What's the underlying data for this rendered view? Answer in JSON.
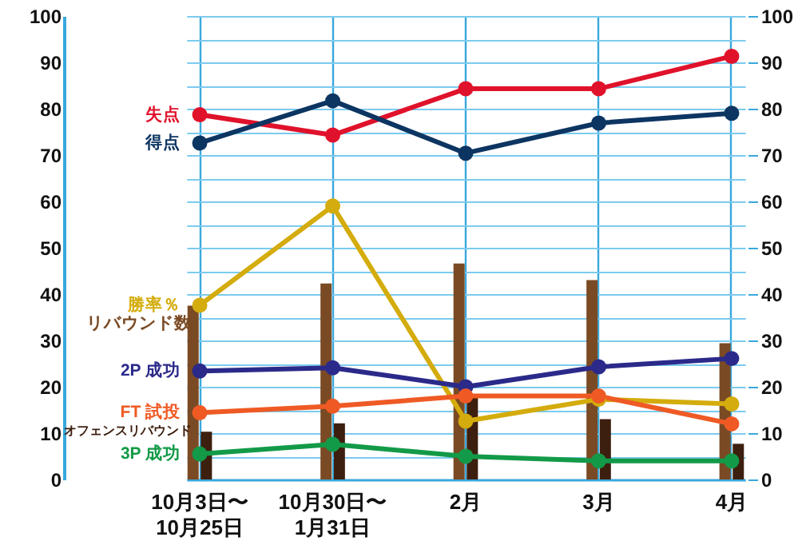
{
  "chart_data": {
    "type": "line",
    "categories": [
      "10月3日〜10月25日",
      "10月30日〜1月31日",
      "2月",
      "3月",
      "4月"
    ],
    "series": [
      {
        "name": "失点",
        "color": "#e0122b",
        "values": [
          78.7,
          74.3,
          84.3,
          84.3,
          91.3
        ]
      },
      {
        "name": "得点",
        "color": "#0d3562",
        "values": [
          72.6,
          81.7,
          70.4,
          76.9,
          79.0
        ]
      },
      {
        "name": "勝率％",
        "color": "#d4ac0d",
        "values": [
          37.6,
          59.0,
          12.6,
          17.3,
          16.3
        ]
      },
      {
        "name": "リバウンド数",
        "type": "bar",
        "color": "#7a4a24",
        "values": [
          37.5,
          42.3,
          46.6,
          43.0,
          29.4
        ]
      },
      {
        "name": "2P 成功",
        "color": "#2b2a8a",
        "values": [
          23.4,
          24.1,
          20.0,
          24.3,
          26.1
        ]
      },
      {
        "name": "FT 試投",
        "color": "#ef5a24",
        "values": [
          14.4,
          15.8,
          18.0,
          18.0,
          12.0
        ]
      },
      {
        "name": "オフェンスリバウンド",
        "type": "bar",
        "color": "#3d1f0f",
        "values": [
          10.3,
          12.1,
          17.8,
          13.0,
          7.7
        ]
      },
      {
        "name": "3P 成功",
        "color": "#139a48",
        "values": [
          5.5,
          7.6,
          5.0,
          4.0,
          4.0
        ]
      }
    ],
    "ylim": [
      0,
      100
    ],
    "yticks": [
      0,
      {
        "value": 5,
        "label": null
      },
      10,
      {
        "value": 15,
        "label": null
      },
      20,
      {
        "value": 25,
        "label": null
      },
      30,
      {
        "value": 35,
        "label": null
      },
      40,
      {
        "value": 45,
        "label": null
      },
      50,
      {
        "value": 55,
        "label": null
      },
      60,
      {
        "value": 65,
        "label": null
      },
      70,
      {
        "value": 75,
        "label": null
      },
      80,
      {
        "value": 85,
        "label": null
      },
      90,
      {
        "value": 95,
        "label": null
      },
      100
    ],
    "y2lim": [
      0,
      100
    ],
    "y2ticks": [
      0,
      10,
      20,
      30,
      40,
      50,
      60,
      70,
      80,
      90,
      100
    ],
    "grid": true,
    "marker": "circle",
    "line_style": "solid"
  }
}
